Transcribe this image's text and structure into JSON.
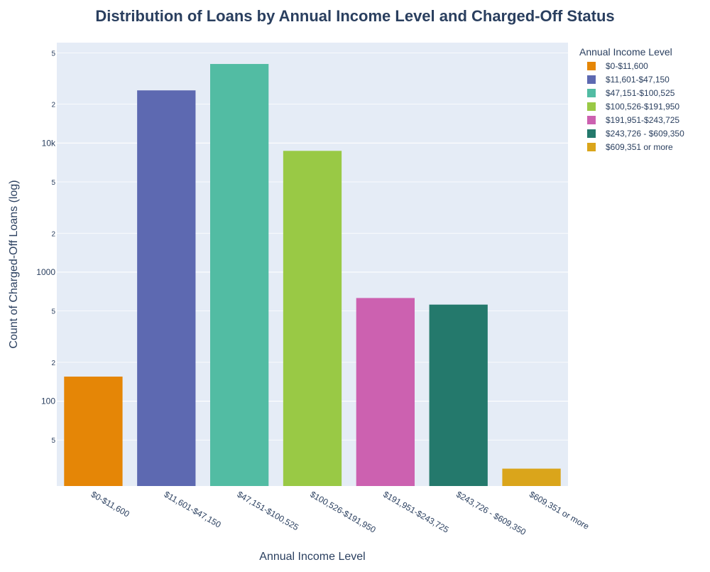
{
  "chart_data": {
    "type": "bar",
    "title": "Distribution of Loans by Annual Income Level and Charged-Off Status",
    "xlabel": "Annual Income Level",
    "ylabel": "Count of Charged-Off Loans (log)",
    "yscale": "log",
    "ylim": [
      22,
      60000
    ],
    "grid": true,
    "legend_title": "Annual Income Level",
    "legend_position": "right",
    "categories": [
      "$0-$11,600",
      "$11,601-$47,150",
      "$47,151-$100,525",
      "$100,526-$191,950",
      "$191,951-$243,725",
      "$243,726 - $609,350",
      "$609,351 or more"
    ],
    "values": [
      155,
      25600,
      41000,
      8700,
      630,
      560,
      30
    ],
    "colors": [
      "#E58606",
      "#5D69B1",
      "#52BCA3",
      "#99C945",
      "#CC61B0",
      "#24796C",
      "#DAA51B"
    ],
    "y_major_ticks": [
      {
        "value": 100,
        "label": "100"
      },
      {
        "value": 1000,
        "label": "1000"
      },
      {
        "value": 10000,
        "label": "10k"
      }
    ],
    "y_minor_ticks": [
      {
        "value": 50,
        "label": "5"
      },
      {
        "value": 200,
        "label": "2"
      },
      {
        "value": 500,
        "label": "5"
      },
      {
        "value": 2000,
        "label": "2"
      },
      {
        "value": 5000,
        "label": "5"
      },
      {
        "value": 20000,
        "label": "2"
      },
      {
        "value": 50000,
        "label": "5"
      }
    ]
  }
}
